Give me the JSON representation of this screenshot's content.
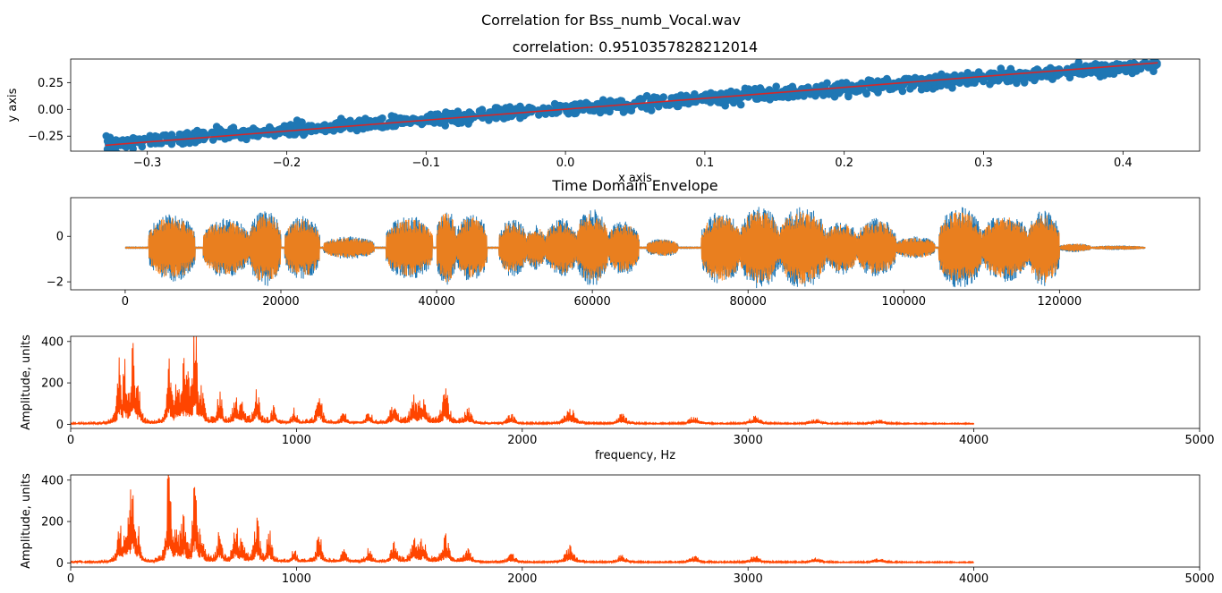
{
  "figure": {
    "suptitle": "Correlation for Bss_numb_Vocal.wav"
  },
  "colors": {
    "scatter": "#1f77b4",
    "fit_line": "#d62728",
    "envelope_a": "#1f77b4",
    "envelope_b": "#ff7f0e",
    "spectrum": "#ff4500"
  },
  "chart_data": [
    {
      "type": "scatter",
      "title": "correlation: 0.9510357828212014",
      "xlabel": "x axis",
      "ylabel": "y axis",
      "xlim": [
        -0.355,
        0.455
      ],
      "ylim": [
        -0.39,
        0.47
      ],
      "xticks": [
        -0.3,
        -0.2,
        -0.1,
        0.0,
        0.1,
        0.2,
        0.3,
        0.4
      ],
      "xtick_labels": [
        "−0.3",
        "−0.2",
        "−0.1",
        "0.0",
        "0.1",
        "0.2",
        "0.3",
        "0.4"
      ],
      "yticks": [
        -0.25,
        0.0,
        0.25
      ],
      "ytick_labels": [
        "−0.25",
        "0.00",
        "0.25"
      ],
      "point_cloud": {
        "x_range": [
          -0.33,
          0.425
        ],
        "slope": 0.98,
        "intercept": 0.0,
        "spread": 0.05
      },
      "fit_line": {
        "x": [
          -0.33,
          0.425
        ],
        "y": [
          -0.335,
          0.435
        ]
      },
      "grid": false
    },
    {
      "type": "line",
      "title": "Time Domain Envelope",
      "xlabel": "",
      "ylabel": "",
      "xlim": [
        -7000,
        138000
      ],
      "ylim": [
        -2.35,
        1.7
      ],
      "xticks": [
        0,
        20000,
        40000,
        60000,
        80000,
        100000,
        120000
      ],
      "xtick_labels": [
        "0",
        "20000",
        "40000",
        "60000",
        "80000",
        "100000",
        "120000"
      ],
      "yticks": [
        -2,
        0
      ],
      "ytick_labels": [
        "−2",
        "0"
      ],
      "x_range": [
        0,
        131000
      ],
      "baseline": -0.5,
      "segments": [
        {
          "start": 3000,
          "end": 9000,
          "amp": 1.5
        },
        {
          "start": 10000,
          "end": 16000,
          "amp": 1.3
        },
        {
          "start": 16000,
          "end": 20000,
          "amp": 1.7
        },
        {
          "start": 20500,
          "end": 25000,
          "amp": 1.4
        },
        {
          "start": 25500,
          "end": 32000,
          "amp": 0.5
        },
        {
          "start": 33500,
          "end": 39500,
          "amp": 1.4
        },
        {
          "start": 40000,
          "end": 42500,
          "amp": 1.7
        },
        {
          "start": 42500,
          "end": 46500,
          "amp": 1.5
        },
        {
          "start": 48000,
          "end": 51500,
          "amp": 1.3
        },
        {
          "start": 51500,
          "end": 54000,
          "amp": 1.0
        },
        {
          "start": 54000,
          "end": 58000,
          "amp": 1.3
        },
        {
          "start": 58000,
          "end": 62000,
          "amp": 1.7
        },
        {
          "start": 62000,
          "end": 66000,
          "amp": 1.2
        },
        {
          "start": 67000,
          "end": 71000,
          "amp": 0.4
        },
        {
          "start": 74000,
          "end": 79000,
          "amp": 1.6
        },
        {
          "start": 79000,
          "end": 84000,
          "amp": 1.8
        },
        {
          "start": 84000,
          "end": 90000,
          "amp": 1.8
        },
        {
          "start": 90000,
          "end": 94000,
          "amp": 1.2
        },
        {
          "start": 94000,
          "end": 99000,
          "amp": 1.3
        },
        {
          "start": 99000,
          "end": 104000,
          "amp": 0.5
        },
        {
          "start": 104500,
          "end": 110000,
          "amp": 1.8
        },
        {
          "start": 110000,
          "end": 116000,
          "amp": 1.5
        },
        {
          "start": 116000,
          "end": 120000,
          "amp": 1.7
        },
        {
          "start": 120000,
          "end": 124000,
          "amp": 0.2
        },
        {
          "start": 124000,
          "end": 131000,
          "amp": 0.1
        }
      ],
      "grid": false
    },
    {
      "type": "area",
      "title": "",
      "xlabel": "frequency, Hz",
      "ylabel": "Amplitude, units",
      "xlim": [
        0,
        5000
      ],
      "ylim": [
        -20,
        425
      ],
      "xticks": [
        0,
        1000,
        2000,
        3000,
        4000,
        5000
      ],
      "xtick_labels": [
        "0",
        "1000",
        "2000",
        "3000",
        "4000",
        "5000"
      ],
      "yticks": [
        0,
        200,
        400
      ],
      "ytick_labels": [
        "0",
        "200",
        "400"
      ],
      "x_range": [
        0,
        4000
      ],
      "peaks": [
        {
          "f": 215,
          "a": 240
        },
        {
          "f": 240,
          "a": 210
        },
        {
          "f": 275,
          "a": 360
        },
        {
          "f": 300,
          "a": 120
        },
        {
          "f": 435,
          "a": 290
        },
        {
          "f": 470,
          "a": 150
        },
        {
          "f": 500,
          "a": 200
        },
        {
          "f": 520,
          "a": 140
        },
        {
          "f": 550,
          "a": 405
        },
        {
          "f": 580,
          "a": 110
        },
        {
          "f": 660,
          "a": 140
        },
        {
          "f": 730,
          "a": 110
        },
        {
          "f": 760,
          "a": 80
        },
        {
          "f": 825,
          "a": 165
        },
        {
          "f": 900,
          "a": 70
        },
        {
          "f": 990,
          "a": 60
        },
        {
          "f": 1100,
          "a": 140
        },
        {
          "f": 1210,
          "a": 50
        },
        {
          "f": 1320,
          "a": 55
        },
        {
          "f": 1430,
          "a": 90
        },
        {
          "f": 1520,
          "a": 100
        },
        {
          "f": 1560,
          "a": 105
        },
        {
          "f": 1660,
          "a": 140
        },
        {
          "f": 1760,
          "a": 60
        },
        {
          "f": 1950,
          "a": 40
        },
        {
          "f": 2210,
          "a": 80
        },
        {
          "f": 2440,
          "a": 40
        },
        {
          "f": 2760,
          "a": 30
        },
        {
          "f": 3030,
          "a": 30
        },
        {
          "f": 3300,
          "a": 20
        },
        {
          "f": 3580,
          "a": 18
        }
      ],
      "grid": false
    },
    {
      "type": "area",
      "title": "",
      "xlabel": "",
      "ylabel": "Amplitude, units",
      "xlim": [
        0,
        5000
      ],
      "ylim": [
        -20,
        425
      ],
      "xticks": [
        0,
        1000,
        2000,
        3000,
        4000,
        5000
      ],
      "xtick_labels": [
        "0",
        "1000",
        "2000",
        "3000",
        "4000",
        "5000"
      ],
      "yticks": [
        0,
        200,
        400
      ],
      "ytick_labels": [
        "0",
        "200",
        "400"
      ],
      "x_range": [
        0,
        4000
      ],
      "peaks": [
        {
          "f": 215,
          "a": 155
        },
        {
          "f": 240,
          "a": 120
        },
        {
          "f": 260,
          "a": 140
        },
        {
          "f": 275,
          "a": 300
        },
        {
          "f": 300,
          "a": 110
        },
        {
          "f": 435,
          "a": 405
        },
        {
          "f": 470,
          "a": 130
        },
        {
          "f": 500,
          "a": 190
        },
        {
          "f": 550,
          "a": 325
        },
        {
          "f": 580,
          "a": 120
        },
        {
          "f": 660,
          "a": 145
        },
        {
          "f": 730,
          "a": 160
        },
        {
          "f": 760,
          "a": 80
        },
        {
          "f": 825,
          "a": 175
        },
        {
          "f": 880,
          "a": 130
        },
        {
          "f": 990,
          "a": 60
        },
        {
          "f": 1100,
          "a": 130
        },
        {
          "f": 1210,
          "a": 50
        },
        {
          "f": 1320,
          "a": 55
        },
        {
          "f": 1430,
          "a": 80
        },
        {
          "f": 1520,
          "a": 85
        },
        {
          "f": 1560,
          "a": 90
        },
        {
          "f": 1660,
          "a": 115
        },
        {
          "f": 1760,
          "a": 55
        },
        {
          "f": 1950,
          "a": 40
        },
        {
          "f": 2210,
          "a": 70
        },
        {
          "f": 2440,
          "a": 30
        },
        {
          "f": 2760,
          "a": 25
        },
        {
          "f": 3030,
          "a": 25
        },
        {
          "f": 3300,
          "a": 18
        },
        {
          "f": 3580,
          "a": 15
        }
      ],
      "grid": false
    }
  ]
}
